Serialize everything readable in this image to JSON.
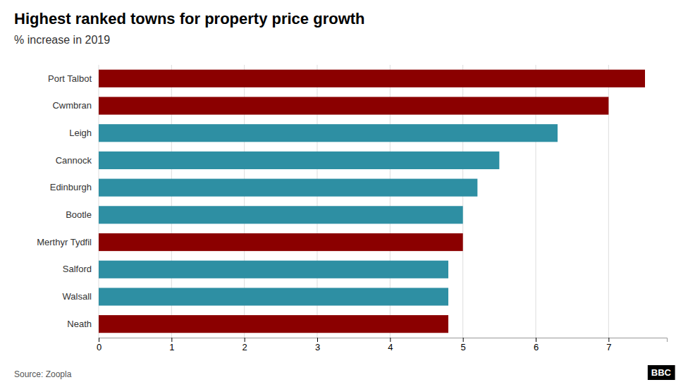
{
  "chart_data": {
    "type": "bar",
    "orientation": "horizontal",
    "title": "Highest ranked towns for property price growth",
    "subtitle": "% increase in 2019",
    "source": "Source: Zoopla",
    "annotations": [
      "BBC"
    ],
    "categories": [
      "Port Talbot",
      "Cwmbran",
      "Leigh",
      "Cannock",
      "Edinburgh",
      "Bootle",
      "Merthyr Tydfil",
      "Salford",
      "Walsall",
      "Neath"
    ],
    "values": [
      7.5,
      7.0,
      6.3,
      5.5,
      5.2,
      5.0,
      5.0,
      4.8,
      4.8,
      4.8
    ],
    "colors": [
      "#8B0000",
      "#8B0000",
      "#2E8FA3",
      "#2E8FA3",
      "#2E8FA3",
      "#2E8FA3",
      "#8B0000",
      "#2E8FA3",
      "#2E8FA3",
      "#8B0000"
    ],
    "xlim": [
      0,
      7.8
    ],
    "xticks": [
      0,
      1,
      2,
      3,
      4,
      5,
      6,
      7
    ],
    "grid": true
  }
}
